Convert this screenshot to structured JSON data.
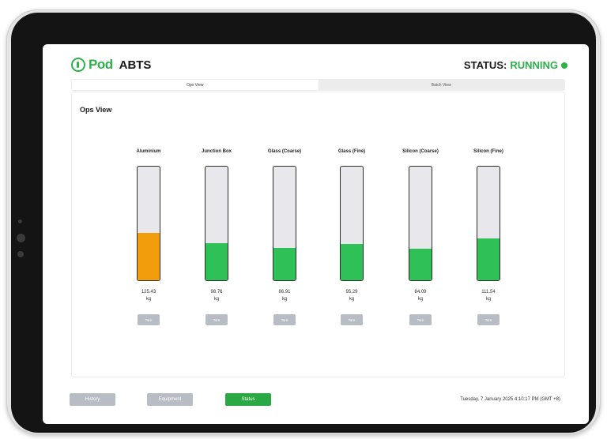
{
  "header": {
    "brand_pod": "Pod",
    "brand_name": "ABTS",
    "status_label": "STATUS:",
    "status_value": "RUNNING",
    "status_color": "#2db24a"
  },
  "tabs": [
    {
      "label": "Ops View",
      "active": true
    },
    {
      "label": "Batch View",
      "active": false
    }
  ],
  "panel": {
    "title": "Ops View"
  },
  "gauges": [
    {
      "name": "Aluminium",
      "value": "125.43",
      "unit": "kg",
      "fill_fraction": 0.42,
      "color": "#f29e0c",
      "tare_label": "Tare"
    },
    {
      "name": "Junction Box",
      "value": "98.76",
      "unit": "kg",
      "fill_fraction": 0.33,
      "color": "#2fc157",
      "tare_label": "Tare"
    },
    {
      "name": "Glass (Coarse)",
      "value": "86.91",
      "unit": "kg",
      "fill_fraction": 0.29,
      "color": "#2fc157",
      "tare_label": "Tare"
    },
    {
      "name": "Glass (Fine)",
      "value": "95.29",
      "unit": "kg",
      "fill_fraction": 0.32,
      "color": "#2fc157",
      "tare_label": "Tare"
    },
    {
      "name": "Silicon (Coarse)",
      "value": "84.09",
      "unit": "kg",
      "fill_fraction": 0.28,
      "color": "#2fc157",
      "tare_label": "Tare"
    },
    {
      "name": "Silicon (Fine)",
      "value": "111.54",
      "unit": "kg",
      "fill_fraction": 0.37,
      "color": "#2fc157",
      "tare_label": "Tare"
    }
  ],
  "footer": {
    "history_label": "History",
    "equipment_label": "Equipment",
    "status_label": "Status",
    "datetime": "Tuesday, 7 January 2025 4:10:17 PM (GMT +8)",
    "active_color": "#2aa844",
    "inactive_color": "#b8bcc4"
  }
}
